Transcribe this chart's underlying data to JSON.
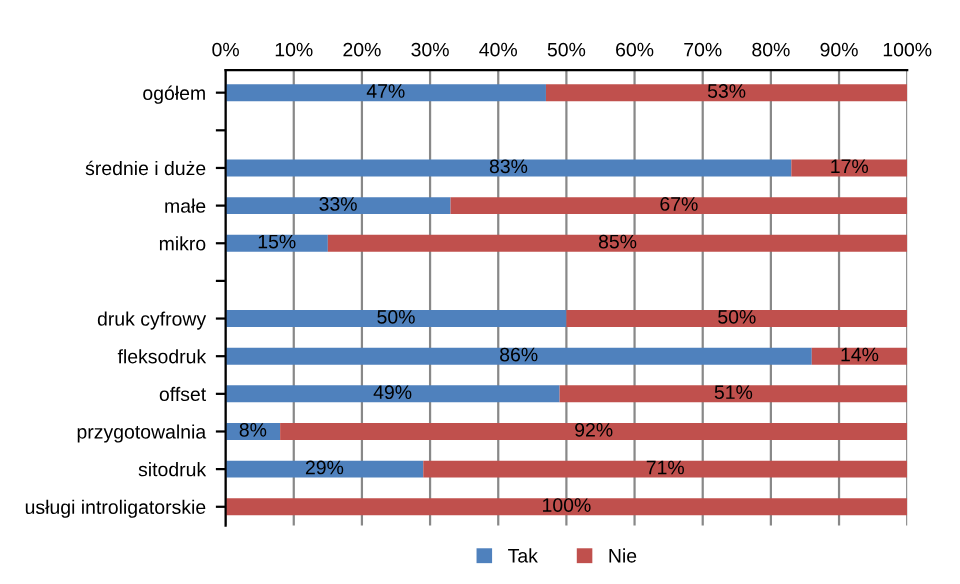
{
  "chart_data": {
    "type": "bar",
    "orientation": "horizontal",
    "stacked": true,
    "categories": [
      "ogółem",
      null,
      "średnie i duże",
      "małe",
      "mikro",
      null,
      "druk cyfrowy",
      "fleksodruk",
      "offset",
      "przygotowalnia",
      "sitodruk",
      "usługi introligatorskie"
    ],
    "series": [
      {
        "name": "Tak",
        "color": "#4f81bd",
        "values": [
          47,
          null,
          83,
          33,
          15,
          null,
          50,
          86,
          49,
          8,
          29,
          0
        ],
        "value_labels": [
          "47%",
          null,
          "83%",
          "33%",
          "15%",
          null,
          "50%",
          "86%",
          "49%",
          "8%",
          "29%",
          null
        ]
      },
      {
        "name": "Nie",
        "color": "#c0504d",
        "values": [
          53,
          null,
          17,
          67,
          85,
          null,
          50,
          14,
          51,
          92,
          71,
          100
        ],
        "value_labels": [
          "53%",
          null,
          "17%",
          "67%",
          "85%",
          null,
          "50%",
          "14%",
          "51%",
          "92%",
          "71%",
          "100%"
        ]
      }
    ],
    "xlim": [
      0,
      100
    ],
    "xticks": [
      {
        "value": 0,
        "label": "0%"
      },
      {
        "value": 10,
        "label": "10%"
      },
      {
        "value": 20,
        "label": "20%"
      },
      {
        "value": 30,
        "label": "30%"
      },
      {
        "value": 40,
        "label": "40%"
      },
      {
        "value": 50,
        "label": "50%"
      },
      {
        "value": 60,
        "label": "60%"
      },
      {
        "value": 70,
        "label": "70%"
      },
      {
        "value": 80,
        "label": "80%"
      },
      {
        "value": 90,
        "label": "90%"
      },
      {
        "value": 100,
        "label": "100%"
      }
    ],
    "grid": "x",
    "legend": "bottom"
  }
}
